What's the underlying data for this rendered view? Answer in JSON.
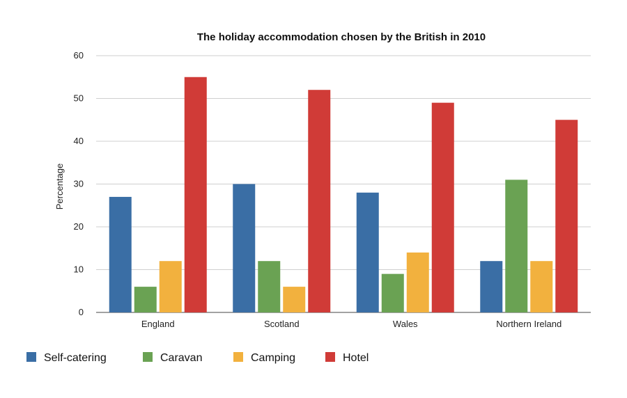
{
  "chart_data": {
    "type": "bar",
    "title": "The holiday accommodation chosen by the British in 2010",
    "xlabel": "",
    "ylabel": "Percentage",
    "ylim": [
      0,
      60
    ],
    "yticks": [
      0,
      10,
      20,
      30,
      40,
      50,
      60
    ],
    "grid": true,
    "legend_position": "bottom",
    "categories": [
      "England",
      "Scotland",
      "Wales",
      "Northern Ireland"
    ],
    "series": [
      {
        "name": "Self-catering",
        "color": "#3a6ea5",
        "values": [
          27,
          30,
          28,
          12
        ]
      },
      {
        "name": "Caravan",
        "color": "#6aa253",
        "values": [
          6,
          12,
          9,
          31
        ]
      },
      {
        "name": "Camping",
        "color": "#f2b13e",
        "values": [
          12,
          6,
          14,
          12
        ]
      },
      {
        "name": "Hotel",
        "color": "#d03b37",
        "values": [
          55,
          52,
          49,
          45
        ]
      }
    ]
  }
}
